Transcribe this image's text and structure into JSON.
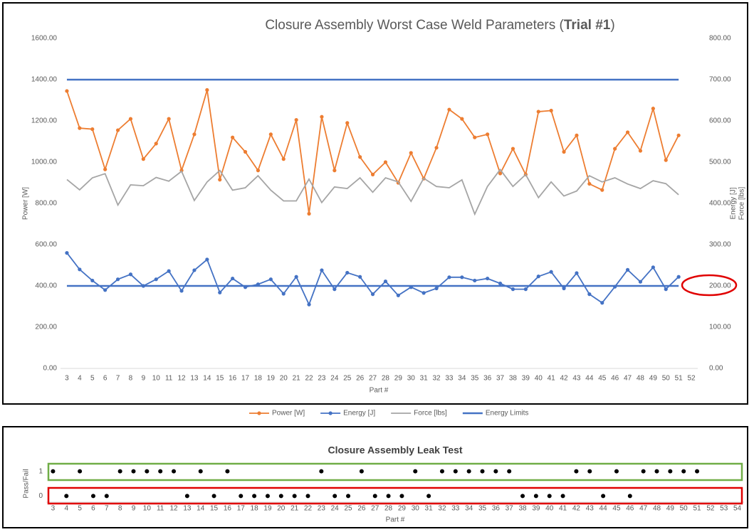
{
  "chart_data": [
    {
      "type": "line",
      "title": [
        "Closure Assembly Worst Case Weld Parameters (",
        "Trial #1",
        ")"
      ],
      "title_bold_index": 1,
      "x_label": "Part #",
      "y_label": "Power [W]",
      "y2_label": [
        "Energy [J]",
        "Force [lbs]"
      ],
      "categories": [
        3,
        4,
        5,
        6,
        7,
        8,
        9,
        10,
        11,
        12,
        13,
        14,
        15,
        16,
        17,
        18,
        19,
        20,
        21,
        22,
        23,
        24,
        25,
        26,
        27,
        28,
        29,
        30,
        31,
        32,
        33,
        34,
        35,
        36,
        37,
        38,
        39,
        40,
        41,
        42,
        43,
        44,
        45,
        46,
        47,
        48,
        49,
        50,
        51,
        52
      ],
      "ylim": [
        0,
        1600
      ],
      "yticks": [
        {
          "value": 0,
          "label": "0.00"
        },
        {
          "value": 200,
          "label": "200.00"
        },
        {
          "value": 400,
          "label": "400.00"
        },
        {
          "value": 600,
          "label": "600.00"
        },
        {
          "value": 800,
          "label": "800.00"
        },
        {
          "value": 1000,
          "label": "1000.00"
        },
        {
          "value": 1200,
          "label": "1200.00"
        },
        {
          "value": 1400,
          "label": "1400.00"
        },
        {
          "value": 1600,
          "label": "1600.00"
        }
      ],
      "y2lim": [
        0,
        800
      ],
      "y2ticks": [
        {
          "value": 0,
          "label": "0.00"
        },
        {
          "value": 100,
          "label": "100.00"
        },
        {
          "value": 200,
          "label": "200.00"
        },
        {
          "value": 300,
          "label": "300.00"
        },
        {
          "value": 400,
          "label": "400.00"
        },
        {
          "value": 500,
          "label": "500.00"
        },
        {
          "value": 600,
          "label": "600.00"
        },
        {
          "value": 700,
          "label": "700.00"
        },
        {
          "value": 800,
          "label": "800.00"
        }
      ],
      "grid": false,
      "legend": "bottom",
      "series": [
        {
          "name": "Power [W]",
          "color": "#ed7d31",
          "axis": "y",
          "markers": true,
          "values": [
            1345,
            1165,
            1160,
            965,
            1155,
            1210,
            1015,
            1090,
            1210,
            960,
            1135,
            1350,
            915,
            1120,
            1050,
            960,
            1135,
            1015,
            1205,
            750,
            1220,
            960,
            1190,
            1025,
            940,
            1000,
            900,
            1045,
            920,
            1070,
            1255,
            1210,
            1120,
            1135,
            945,
            1065,
            940,
            1245,
            1250,
            1050,
            1130,
            895,
            865,
            1065,
            1145,
            1055,
            1260,
            1010,
            1130,
            null
          ]
        },
        {
          "name": "Energy [J]",
          "color": "#4472c4",
          "axis": "y2",
          "markers": true,
          "values": [
            280,
            240,
            213,
            190,
            216,
            228,
            200,
            216,
            236,
            188,
            238,
            264,
            184,
            218,
            197,
            204,
            216,
            181,
            222,
            155,
            238,
            192,
            232,
            222,
            180,
            211,
            177,
            197,
            183,
            194,
            221,
            221,
            213,
            218,
            206,
            192,
            192,
            223,
            234,
            194,
            231,
            180,
            159,
            198,
            239,
            210,
            245,
            192,
            222,
            null
          ]
        },
        {
          "name": "Force [lbs]",
          "color": "#a5a5a5",
          "axis": "y2",
          "markers": false,
          "values": [
            458,
            433,
            462,
            472,
            396,
            445,
            443,
            463,
            454,
            478,
            407,
            452,
            480,
            432,
            438,
            467,
            432,
            406,
            406,
            459,
            402,
            440,
            436,
            462,
            427,
            462,
            452,
            405,
            461,
            441,
            438,
            457,
            374,
            441,
            482,
            441,
            470,
            414,
            452,
            418,
            430,
            467,
            452,
            462,
            447,
            436,
            455,
            448,
            421,
            null
          ]
        },
        {
          "name": "Energy Limits",
          "color": "#4472c4",
          "axis": "y2",
          "levels": [
            700,
            200
          ]
        }
      ]
    },
    {
      "type": "scatter",
      "title": "Closure Assembly Leak Test",
      "x_label": "Part #",
      "y_label": "Pass/Fail",
      "categories": [
        3,
        4,
        5,
        6,
        7,
        8,
        9,
        10,
        11,
        12,
        13,
        14,
        15,
        16,
        17,
        18,
        19,
        20,
        21,
        22,
        23,
        24,
        25,
        26,
        27,
        28,
        29,
        30,
        31,
        32,
        33,
        34,
        35,
        36,
        37,
        38,
        39,
        40,
        41,
        42,
        43,
        44,
        45,
        46,
        47,
        48,
        49,
        50,
        51,
        52,
        53,
        54
      ],
      "values": [
        1,
        0,
        1,
        0,
        0,
        1,
        1,
        1,
        1,
        1,
        0,
        1,
        0,
        1,
        0,
        0,
        0,
        0,
        0,
        0,
        1,
        0,
        0,
        1,
        0,
        0,
        0,
        1,
        0,
        1,
        1,
        1,
        1,
        1,
        1,
        0,
        0,
        0,
        0,
        1,
        1,
        0,
        1,
        0,
        1,
        1,
        1,
        1,
        1,
        null,
        null,
        null
      ],
      "color": "#000000",
      "ylim": [
        -0.25,
        1.25
      ],
      "yticks": [
        0,
        1
      ]
    }
  ]
}
